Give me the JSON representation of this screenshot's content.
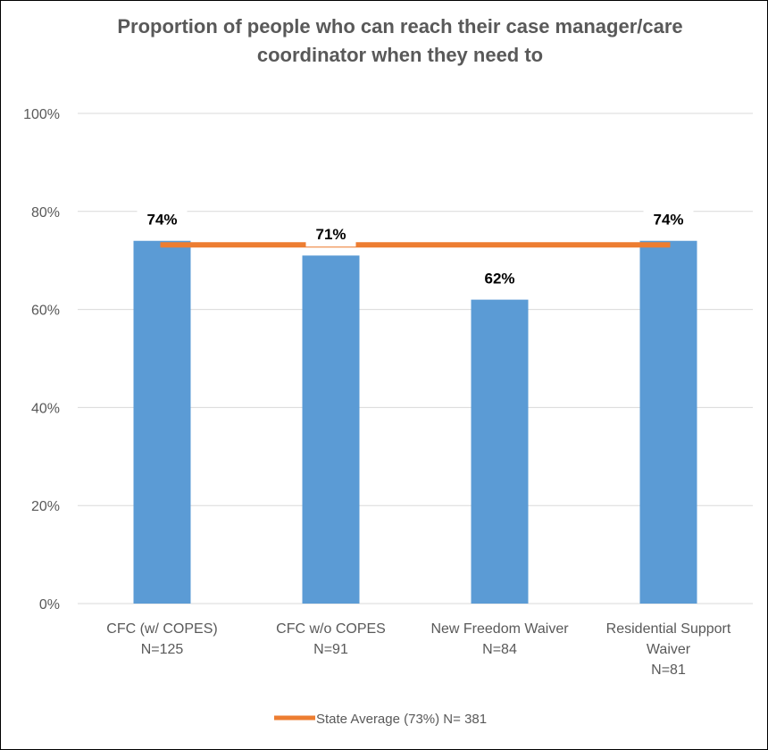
{
  "chart_data": {
    "type": "bar",
    "title": "Proportion of people who can reach their case manager/care coordinator when they need to",
    "title_lines": [
      "Proportion of people who can reach their case manager/care",
      "coordinator when they need to"
    ],
    "categories": [
      [
        "CFC (w/ COPES)",
        "N=125"
      ],
      [
        "CFC w/o COPES",
        "N=91"
      ],
      [
        "New Freedom Waiver",
        "N=84"
      ],
      [
        "Residential Support",
        "Waiver",
        "N=81"
      ]
    ],
    "values": [
      74,
      71,
      62,
      74
    ],
    "data_labels": [
      "74%",
      "71%",
      "62%",
      "74%"
    ],
    "reference_line": {
      "name": "State Average (73%) N= 381",
      "value": 73
    },
    "ylim": [
      0,
      100
    ],
    "yticks": [
      0,
      20,
      40,
      60,
      80,
      100
    ],
    "ytick_labels": [
      "0%",
      "20%",
      "40%",
      "60%",
      "80%",
      "100%"
    ],
    "grid": true,
    "legend": "bottom",
    "colors": {
      "bar": "#5b9bd5",
      "reference_line": "#ed7d31",
      "grid": "#d9d9d9",
      "text": "#595959"
    }
  }
}
